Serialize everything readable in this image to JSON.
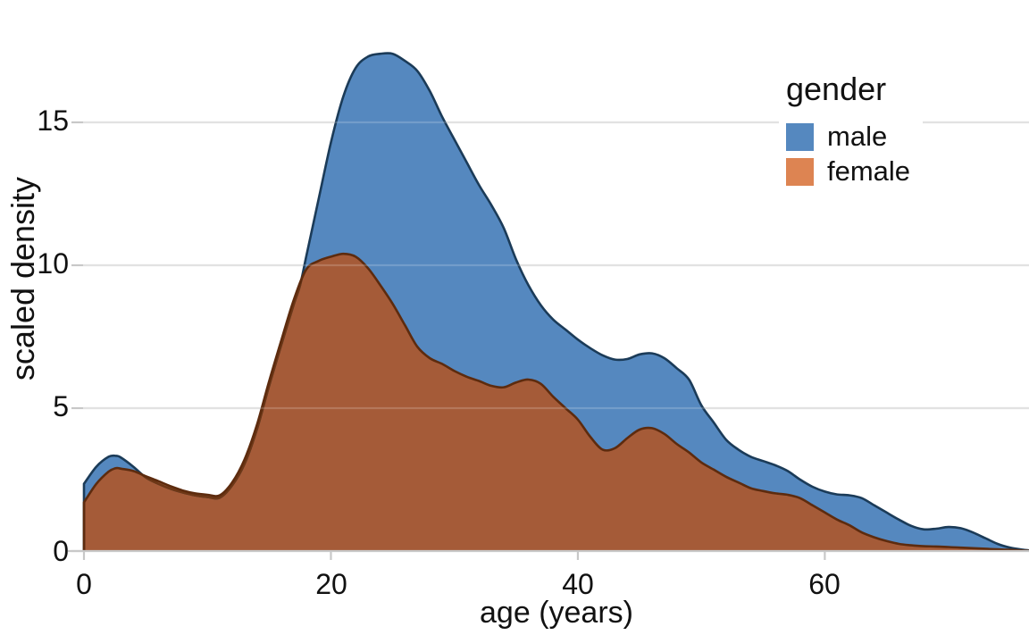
{
  "figure": {
    "kind": "overlapping density plot",
    "background": "#ffffff"
  },
  "axes": {
    "x_title": "age (years)",
    "y_title": "scaled density",
    "x_tick_labels": [
      "0",
      "20",
      "40",
      "60"
    ],
    "y_tick_labels": [
      "0",
      "5",
      "10",
      "15"
    ]
  },
  "legend": {
    "title": "gender",
    "items": [
      {
        "label": "male",
        "color": "#5588BF"
      },
      {
        "label": "female",
        "color": "#DD8452"
      }
    ]
  },
  "chart_data": {
    "type": "area",
    "title": "",
    "xlabel": "age (years)",
    "ylabel": "scaled density",
    "xlim": [
      0,
      76.6
    ],
    "ylim": [
      0,
      19.3
    ],
    "x_ticks": [
      0,
      20,
      40,
      60
    ],
    "y_ticks": [
      0,
      5,
      10,
      15
    ],
    "grid": "horizontal gridlines at y=5,10,15",
    "legend_title": "gender",
    "legend_position": "top-right-inside",
    "colors": {
      "male_fill": "#5588BF",
      "male_edge": "#1B3B58",
      "female_fill": "#DD8452",
      "female_edge": "#5D2B0E",
      "overlap_fill": "#A55B38",
      "gridline": "#DCDCDC",
      "axis_line": "#C8C8C8",
      "text": "#111111"
    },
    "series": [
      {
        "name": "male",
        "fill": "#5588BF",
        "edge": "#1B3B58",
        "points": [
          [
            0,
            2.35
          ],
          [
            1,
            2.95
          ],
          [
            2,
            3.3
          ],
          [
            2.6,
            3.33
          ],
          [
            3,
            3.27
          ],
          [
            4,
            2.95
          ],
          [
            5,
            2.58
          ],
          [
            6,
            2.36
          ],
          [
            7,
            2.18
          ],
          [
            8,
            2.05
          ],
          [
            9,
            1.95
          ],
          [
            10,
            1.89
          ],
          [
            11,
            1.87
          ],
          [
            12,
            2.3
          ],
          [
            13,
            3.05
          ],
          [
            14,
            4.25
          ],
          [
            15,
            5.8
          ],
          [
            16,
            7.25
          ],
          [
            17,
            8.65
          ],
          [
            17.5,
            9.3
          ],
          [
            18,
            10.3
          ],
          [
            19,
            12.3
          ],
          [
            20,
            14.3
          ],
          [
            21,
            15.9
          ],
          [
            22,
            16.9
          ],
          [
            23,
            17.3
          ],
          [
            24,
            17.4
          ],
          [
            25,
            17.4
          ],
          [
            26,
            17.15
          ],
          [
            27,
            16.8
          ],
          [
            28,
            16.1
          ],
          [
            29,
            15.2
          ],
          [
            30,
            14.4
          ],
          [
            31,
            13.6
          ],
          [
            32,
            12.8
          ],
          [
            33,
            12.1
          ],
          [
            34,
            11.3
          ],
          [
            35,
            10.2
          ],
          [
            36,
            9.3
          ],
          [
            37,
            8.6
          ],
          [
            38,
            8.1
          ],
          [
            39,
            7.75
          ],
          [
            40,
            7.4
          ],
          [
            41,
            7.1
          ],
          [
            42,
            6.85
          ],
          [
            43,
            6.7
          ],
          [
            44,
            6.72
          ],
          [
            45,
            6.88
          ],
          [
            46,
            6.92
          ],
          [
            47,
            6.75
          ],
          [
            48,
            6.4
          ],
          [
            49,
            6.0
          ],
          [
            50,
            5.1
          ],
          [
            51,
            4.5
          ],
          [
            52,
            3.9
          ],
          [
            53,
            3.55
          ],
          [
            54,
            3.3
          ],
          [
            55,
            3.15
          ],
          [
            56,
            3.0
          ],
          [
            57,
            2.8
          ],
          [
            58,
            2.5
          ],
          [
            59,
            2.25
          ],
          [
            60,
            2.08
          ],
          [
            61,
            1.98
          ],
          [
            62,
            1.95
          ],
          [
            63,
            1.85
          ],
          [
            64,
            1.6
          ],
          [
            65,
            1.35
          ],
          [
            66,
            1.1
          ],
          [
            67,
            0.88
          ],
          [
            68,
            0.76
          ],
          [
            69,
            0.78
          ],
          [
            70,
            0.84
          ],
          [
            71,
            0.8
          ],
          [
            72,
            0.65
          ],
          [
            73,
            0.45
          ],
          [
            74,
            0.25
          ],
          [
            75,
            0.12
          ],
          [
            76,
            0.05
          ],
          [
            76.6,
            0.02
          ]
        ]
      },
      {
        "name": "female",
        "fill": "#DD8452",
        "edge": "#5D2B0E",
        "overlap_fill": "#A55B38",
        "points": [
          [
            0,
            1.7
          ],
          [
            1,
            2.35
          ],
          [
            2,
            2.78
          ],
          [
            2.6,
            2.9
          ],
          [
            3,
            2.88
          ],
          [
            4,
            2.8
          ],
          [
            5,
            2.62
          ],
          [
            6,
            2.45
          ],
          [
            7,
            2.27
          ],
          [
            8,
            2.12
          ],
          [
            9,
            2.02
          ],
          [
            10,
            1.97
          ],
          [
            11,
            1.95
          ],
          [
            12,
            2.4
          ],
          [
            13,
            3.2
          ],
          [
            14,
            4.4
          ],
          [
            15,
            5.95
          ],
          [
            16,
            7.4
          ],
          [
            17,
            8.8
          ],
          [
            18,
            9.85
          ],
          [
            19,
            10.15
          ],
          [
            20,
            10.3
          ],
          [
            21,
            10.4
          ],
          [
            22,
            10.3
          ],
          [
            23,
            9.9
          ],
          [
            24,
            9.3
          ],
          [
            25,
            8.65
          ],
          [
            26,
            7.9
          ],
          [
            27,
            7.15
          ],
          [
            28,
            6.75
          ],
          [
            29,
            6.55
          ],
          [
            30,
            6.3
          ],
          [
            31,
            6.1
          ],
          [
            32,
            5.95
          ],
          [
            33,
            5.78
          ],
          [
            34,
            5.73
          ],
          [
            35,
            5.9
          ],
          [
            36,
            6.0
          ],
          [
            37,
            5.85
          ],
          [
            38,
            5.4
          ],
          [
            39,
            5.0
          ],
          [
            40,
            4.6
          ],
          [
            41,
            4.0
          ],
          [
            42,
            3.55
          ],
          [
            43,
            3.6
          ],
          [
            44,
            3.95
          ],
          [
            45,
            4.25
          ],
          [
            46,
            4.3
          ],
          [
            47,
            4.1
          ],
          [
            48,
            3.75
          ],
          [
            49,
            3.45
          ],
          [
            50,
            3.1
          ],
          [
            51,
            2.85
          ],
          [
            52,
            2.6
          ],
          [
            53,
            2.4
          ],
          [
            54,
            2.2
          ],
          [
            55,
            2.1
          ],
          [
            56,
            2.02
          ],
          [
            57,
            1.97
          ],
          [
            58,
            1.85
          ],
          [
            59,
            1.6
          ],
          [
            60,
            1.35
          ],
          [
            61,
            1.1
          ],
          [
            62,
            0.9
          ],
          [
            63,
            0.65
          ],
          [
            64,
            0.48
          ],
          [
            65,
            0.35
          ],
          [
            66,
            0.25
          ],
          [
            67,
            0.2
          ],
          [
            68,
            0.17
          ],
          [
            69,
            0.16
          ],
          [
            70,
            0.14
          ],
          [
            71,
            0.12
          ],
          [
            72,
            0.1
          ],
          [
            73,
            0.08
          ],
          [
            74,
            0.06
          ],
          [
            75,
            0.04
          ],
          [
            76,
            0.02
          ],
          [
            76.6,
            0.01
          ]
        ]
      }
    ]
  }
}
